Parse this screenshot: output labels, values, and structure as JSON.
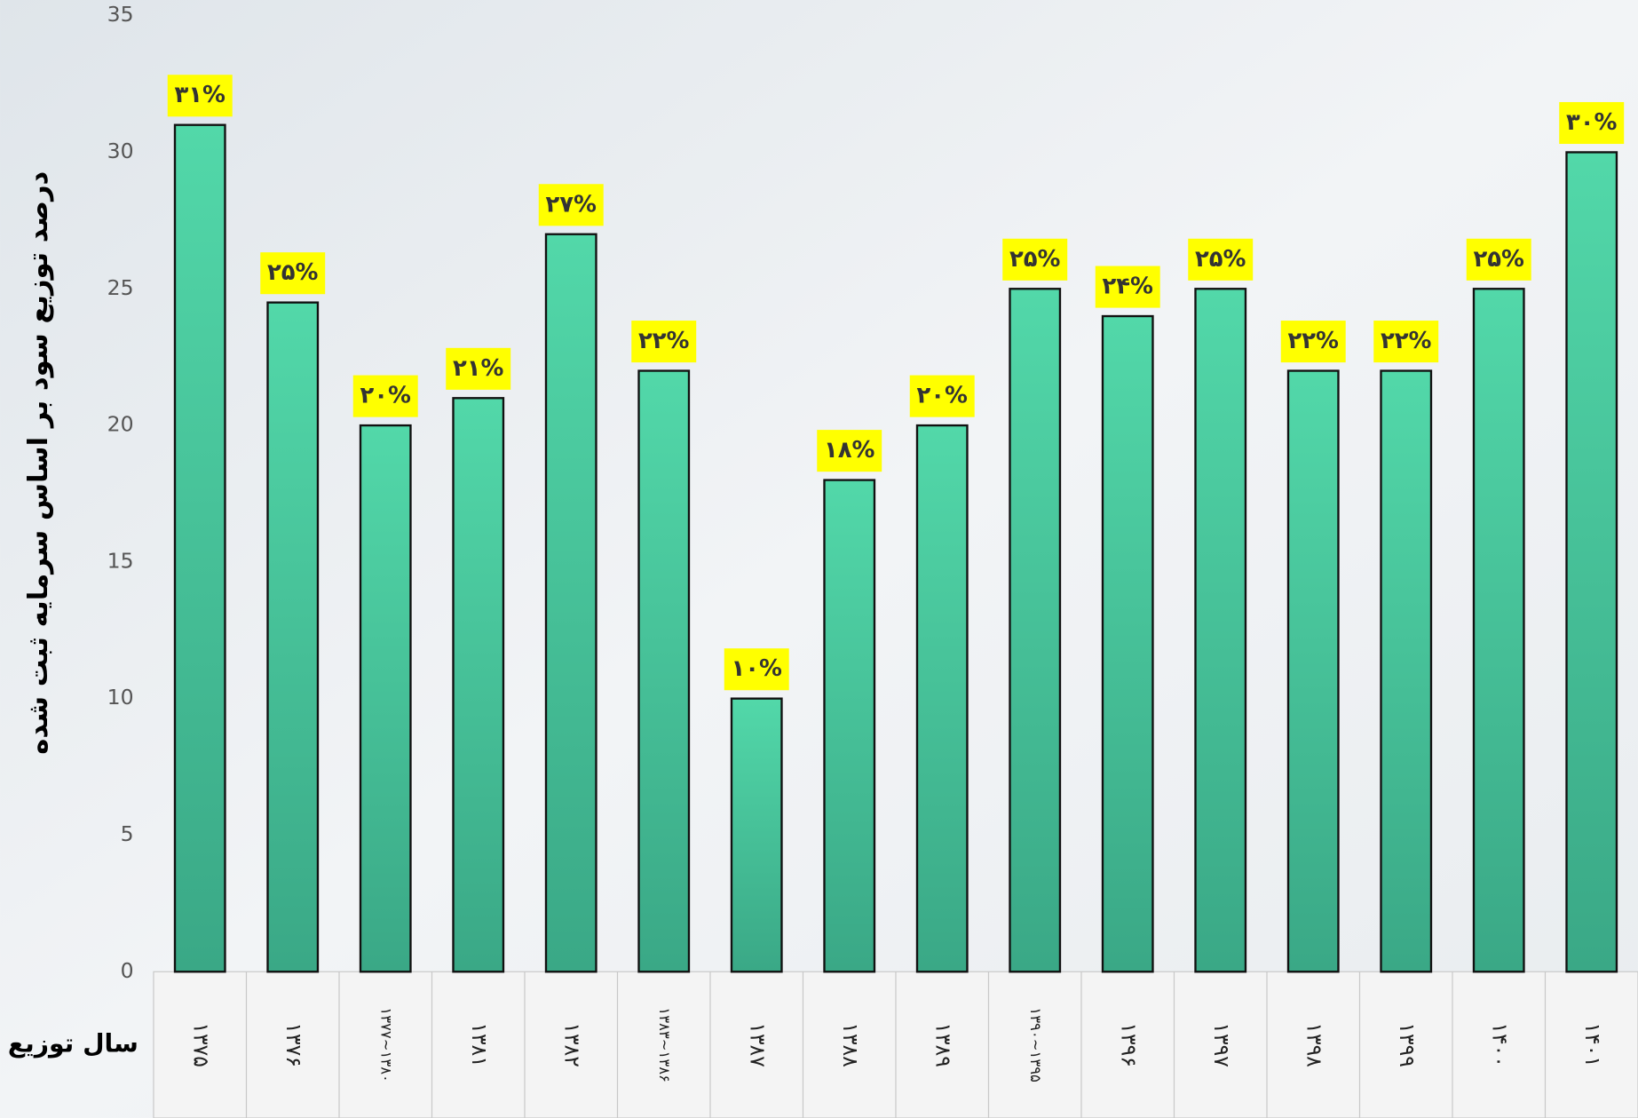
{
  "chart_data": {
    "type": "bar",
    "y_label": "درصد توزیع سود بر اساس سرمایه ثبت شده",
    "x_label": "سال توزیع",
    "categories": [
      "۱۳۷۵",
      "۱۳۷۶",
      "۱۳۷۷~۱۳۸۰",
      "۱۳۸۱",
      "۱۳۸۲",
      "۱۳۸۳~۱۳۸۶",
      "۱۳۸۷",
      "۱۳۸۸",
      "۱۳۸۹",
      "۱۳۹۰~۱۳۹۵",
      "۱۳۹۶",
      "۱۳۹۷",
      "۱۳۹۸",
      "۱۳۹۹",
      "۱۴۰۰",
      "۱۴۰۱"
    ],
    "values": [
      31,
      24.5,
      20,
      21,
      27,
      22,
      10,
      18,
      20,
      25,
      24,
      25,
      22,
      22,
      25,
      30
    ],
    "value_labels": [
      "۳۱%",
      "۲۵%",
      "۲۰%",
      "۲۱%",
      "۲۷%",
      "۲۲%",
      "۱۰%",
      "۱۸%",
      "۲۰%",
      "۲۵%",
      "۲۴%",
      "۲۵%",
      "۲۲%",
      "۲۲%",
      "۲۵%",
      "۳۰%"
    ],
    "color": "#45c79c",
    "ylim": [
      0,
      35
    ],
    "yticks": [
      0,
      5,
      10,
      15,
      20,
      25,
      30,
      35
    ],
    "grid": false
  }
}
